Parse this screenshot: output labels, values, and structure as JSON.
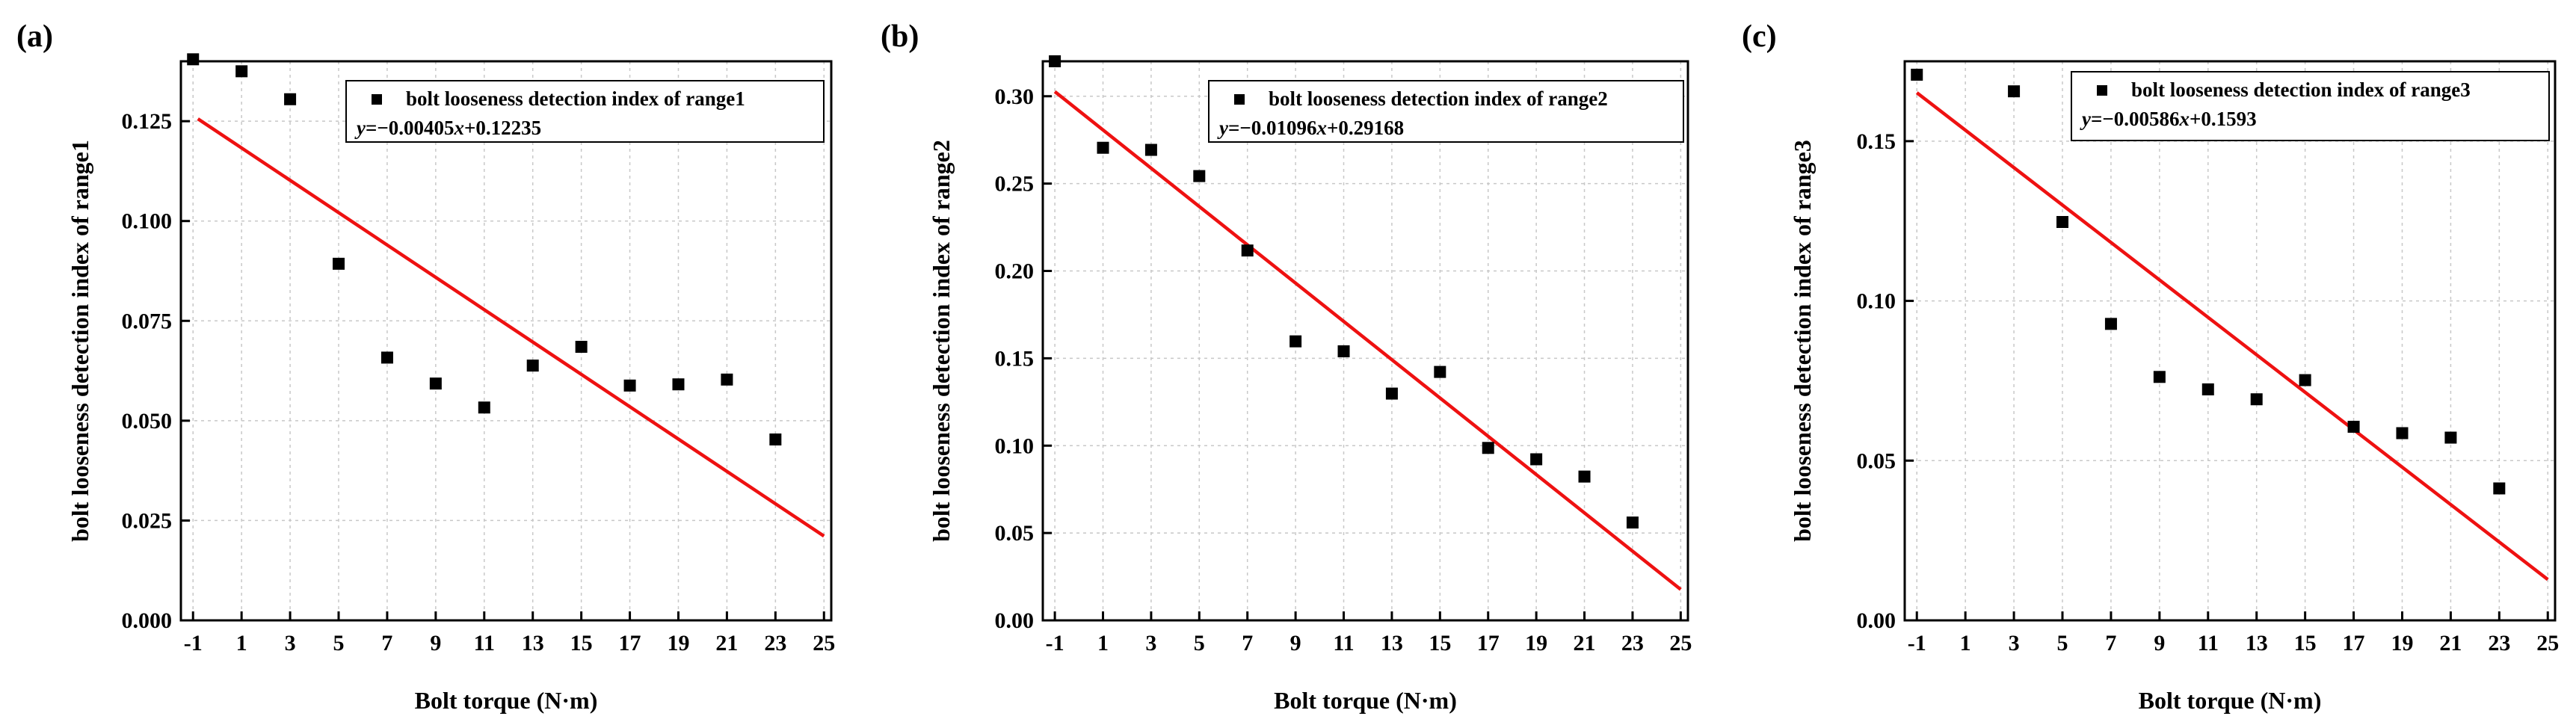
{
  "chart_data": [
    {
      "type": "scatter",
      "panel_label": "(a)",
      "xlabel": "Bolt torque (N·m)",
      "ylabel": "bolt looseness detection index of range1",
      "xlim": [
        -1.5,
        25.3
      ],
      "ylim": [
        0,
        0.14
      ],
      "xticks": [
        -1,
        1,
        3,
        5,
        7,
        9,
        11,
        13,
        15,
        17,
        19,
        21,
        23,
        25
      ],
      "yticks": [
        0.0,
        0.025,
        0.05,
        0.075,
        0.1,
        0.125
      ],
      "ytick_labels": [
        "0.000",
        "0.025",
        "0.050",
        "0.075",
        "0.100",
        "0.125"
      ],
      "x": [
        -1,
        1,
        3,
        5,
        7,
        9,
        11,
        13,
        15,
        17,
        19,
        21,
        23
      ],
      "y": [
        0.1405,
        0.1375,
        0.1305,
        0.0893,
        0.0658,
        0.0593,
        0.0533,
        0.0638,
        0.0685,
        0.0588,
        0.0591,
        0.0603,
        0.0453
      ],
      "fit": {
        "slope": -0.00405,
        "intercept": 0.12235,
        "x_range": [
          -0.8,
          25
        ],
        "color": "#ee1111"
      },
      "legend": {
        "position": "top-right",
        "entry": "bolt looseness detection index of range1",
        "eq_var": "y",
        "eq_mid": "=−0.00405",
        "eq_var2": "x",
        "eq_tail": "+0.12235"
      },
      "grid": true
    },
    {
      "type": "scatter",
      "panel_label": "(b)",
      "xlabel": "Bolt torque (N·m)",
      "ylabel": "bolt looseness detection index of range2",
      "xlim": [
        -1.5,
        25.3
      ],
      "ylim": [
        0,
        0.32
      ],
      "xticks": [
        -1,
        1,
        3,
        5,
        7,
        9,
        11,
        13,
        15,
        17,
        19,
        21,
        23,
        25
      ],
      "yticks": [
        0.0,
        0.05,
        0.1,
        0.15,
        0.2,
        0.25,
        0.3
      ],
      "ytick_labels": [
        "0.00",
        "0.05",
        "0.10",
        "0.15",
        "0.20",
        "0.25",
        "0.30"
      ],
      "x": [
        -1,
        1,
        3,
        5,
        7,
        9,
        11,
        13,
        15,
        17,
        19,
        21,
        23
      ],
      "y": [
        0.32,
        0.2705,
        0.2693,
        0.2543,
        0.2117,
        0.1597,
        0.154,
        0.1298,
        0.1422,
        0.0987,
        0.0922,
        0.0823,
        0.056
      ],
      "fit": {
        "slope": -0.01096,
        "intercept": 0.29168,
        "x_range": [
          -1,
          25
        ],
        "color": "#ee1111"
      },
      "legend": {
        "position": "top-right",
        "entry": "bolt looseness detection index of range2",
        "eq_var": "y",
        "eq_mid": "=−0.01096",
        "eq_var2": "x",
        "eq_tail": "+0.29168"
      },
      "grid": true
    },
    {
      "type": "scatter",
      "panel_label": "(c)",
      "xlabel": "Bolt torque (N·m)",
      "ylabel": "bolt looseness detection index of range3",
      "xlim": [
        -1.5,
        25.3
      ],
      "ylim": [
        0,
        0.175
      ],
      "xticks": [
        -1,
        1,
        3,
        5,
        7,
        9,
        11,
        13,
        15,
        17,
        19,
        21,
        23,
        25
      ],
      "yticks": [
        0.0,
        0.05,
        0.1,
        0.15
      ],
      "ytick_labels": [
        "0.00",
        "0.05",
        "0.10",
        "0.15"
      ],
      "x": [
        -1,
        3,
        5,
        7,
        9,
        11,
        13,
        15,
        17,
        19,
        21,
        23
      ],
      "y": [
        0.1708,
        0.1656,
        0.1247,
        0.0928,
        0.0762,
        0.0723,
        0.0692,
        0.0752,
        0.0606,
        0.0586,
        0.0572,
        0.0413
      ],
      "fit": {
        "slope": -0.00586,
        "intercept": 0.1593,
        "x_range": [
          -1,
          25
        ],
        "color": "#ee1111"
      },
      "legend": {
        "position": "top-right",
        "entry": "bolt looseness detection index of range3",
        "eq_var": "y",
        "eq_mid": "=−0.00586",
        "eq_var2": "x",
        "eq_tail": "+0.1593"
      },
      "grid": true
    }
  ]
}
